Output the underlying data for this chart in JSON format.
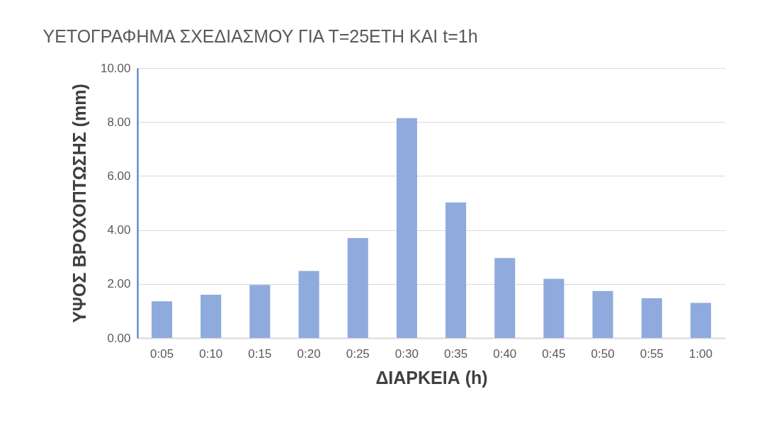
{
  "chart_data": {
    "type": "bar",
    "title": "ΥΕΤΟΓΡΑΦΗΜΑ ΣΧΕΔΙΑΣΜΟΥ ΓΙΑ Τ=25ΕΤΗ ΚΑΙ t=1h",
    "xlabel": "ΔΙΑΡΚΕΙΑ (h)",
    "ylabel": "ΥΨΟΣ ΒΡΟΧΟΠΤΩΣΗΣ (mm)",
    "categories": [
      "0:05",
      "0:10",
      "0:15",
      "0:20",
      "0:25",
      "0:30",
      "0:35",
      "0:40",
      "0:45",
      "0:50",
      "0:55",
      "1:00"
    ],
    "values": [
      1.36,
      1.6,
      1.96,
      2.48,
      3.7,
      8.14,
      5.02,
      2.96,
      2.19,
      1.74,
      1.47,
      1.3
    ],
    "color": "#8faadc",
    "ylim": [
      0,
      10
    ],
    "yticks": [
      {
        "value": 0,
        "label": "0.00"
      },
      {
        "value": 2,
        "label": "2.00"
      },
      {
        "value": 4,
        "label": "4.00"
      },
      {
        "value": 6,
        "label": "6.00"
      },
      {
        "value": 8,
        "label": "8.00"
      },
      {
        "value": 10,
        "label": "10.00"
      }
    ],
    "grid": "y"
  }
}
